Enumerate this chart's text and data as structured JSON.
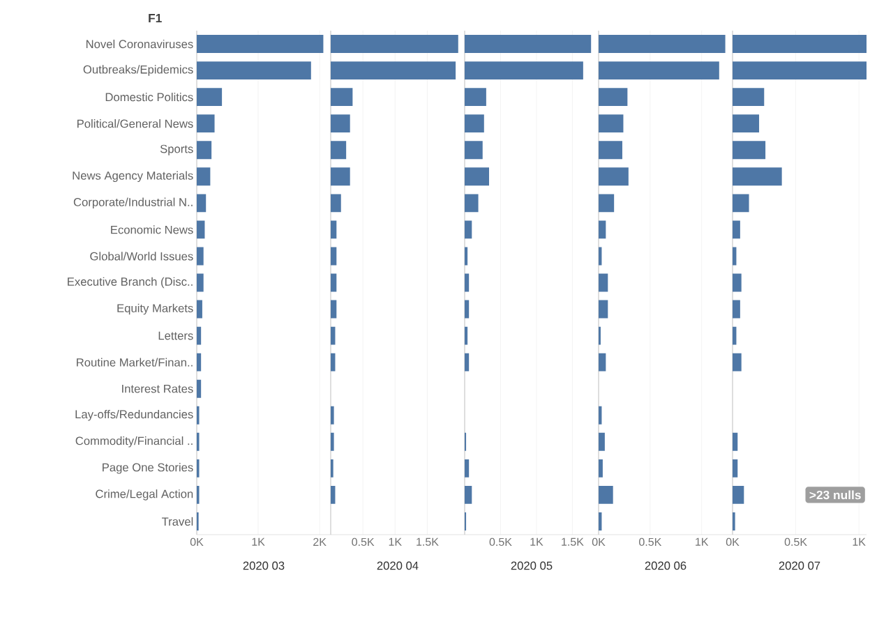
{
  "chart_data": [
    {
      "type": "bar",
      "orientation": "horizontal",
      "ylabel": "F1",
      "xlabel": "2020 03",
      "color": "#4e77a6",
      "grid": "x",
      "categories": [
        "Novel Coronaviruses",
        "Outbreaks/Epidemics",
        "Domestic Politics",
        "Political/General News",
        "Sports",
        "News Agency Materials",
        "Corporate/Industrial N..",
        "Economic News",
        "Global/World Issues",
        "Executive Branch (Disc..",
        "Equity Markets",
        "Letters",
        "Routine Market/Finan..",
        "Interest Rates",
        "Lay-offs/Redundancies",
        "Commodity/Financial ..",
        "Page One Stories",
        "Crime/Legal Action",
        "Travel"
      ],
      "values": [
        2060,
        1860,
        410,
        290,
        240,
        220,
        150,
        130,
        110,
        110,
        90,
        70,
        70,
        70,
        40,
        40,
        40,
        40,
        30
      ],
      "xlim": [
        0,
        2180
      ],
      "xticks": [
        {
          "value": 0,
          "label": "0K"
        },
        {
          "value": 1000,
          "label": "1K"
        },
        {
          "value": 2000,
          "label": "2K"
        }
      ]
    },
    {
      "type": "bar",
      "orientation": "horizontal",
      "xlabel": "2020 04",
      "color": "#4e77a6",
      "grid": "x",
      "tick_labels": "x",
      "values": [
        1980,
        1940,
        340,
        300,
        240,
        300,
        160,
        90,
        90,
        90,
        90,
        70,
        70,
        null,
        50,
        50,
        40,
        70,
        null
      ],
      "xlim": [
        0,
        2080
      ],
      "xticks": [
        {
          "value": 0,
          "label": null
        },
        {
          "value": 500,
          "label": "0.5K"
        },
        {
          "value": 1000,
          "label": "1K"
        },
        {
          "value": 1500,
          "label": "1.5K"
        }
      ]
    },
    {
      "type": "bar",
      "orientation": "horizontal",
      "xlabel": "2020 05",
      "color": "#4e77a6",
      "grid": "x",
      "tick_labels": "x",
      "values": [
        1760,
        1650,
        300,
        270,
        250,
        340,
        190,
        100,
        40,
        60,
        60,
        40,
        60,
        null,
        null,
        20,
        60,
        100,
        20
      ],
      "xlim": [
        0,
        1865
      ],
      "xticks": [
        {
          "value": 0,
          "label": null
        },
        {
          "value": 500,
          "label": "0.5K"
        },
        {
          "value": 1000,
          "label": "1K"
        },
        {
          "value": 1500,
          "label": "1.5K"
        }
      ]
    },
    {
      "type": "bar",
      "orientation": "horizontal",
      "xlabel": "2020 06",
      "color": "#4e77a6",
      "grid": "x",
      "tick_labels": "x",
      "values": [
        1230,
        1170,
        280,
        240,
        230,
        290,
        150,
        70,
        30,
        90,
        90,
        20,
        70,
        null,
        30,
        60,
        40,
        140,
        30
      ],
      "xlim": [
        0,
        1300
      ],
      "xticks": [
        {
          "value": 0,
          "label": "0K"
        },
        {
          "value": 500,
          "label": "0.5K"
        },
        {
          "value": 1000,
          "label": "1K"
        }
      ]
    },
    {
      "type": "bar",
      "orientation": "horizontal",
      "xlabel": "2020 07",
      "color": "#4e77a6",
      "grid": "x",
      "tick_labels": "x",
      "values": [
        1060,
        1060,
        250,
        210,
        260,
        390,
        130,
        60,
        30,
        70,
        60,
        30,
        70,
        null,
        null,
        40,
        40,
        90,
        20
      ],
      "xlim": [
        0,
        1060
      ],
      "xticks": [
        {
          "value": 0,
          "label": "0K"
        },
        {
          "value": 500,
          "label": "0.5K"
        },
        {
          "value": 1000,
          "label": "1K"
        }
      ],
      "annotations": [
        ">23 nulls"
      ]
    }
  ]
}
